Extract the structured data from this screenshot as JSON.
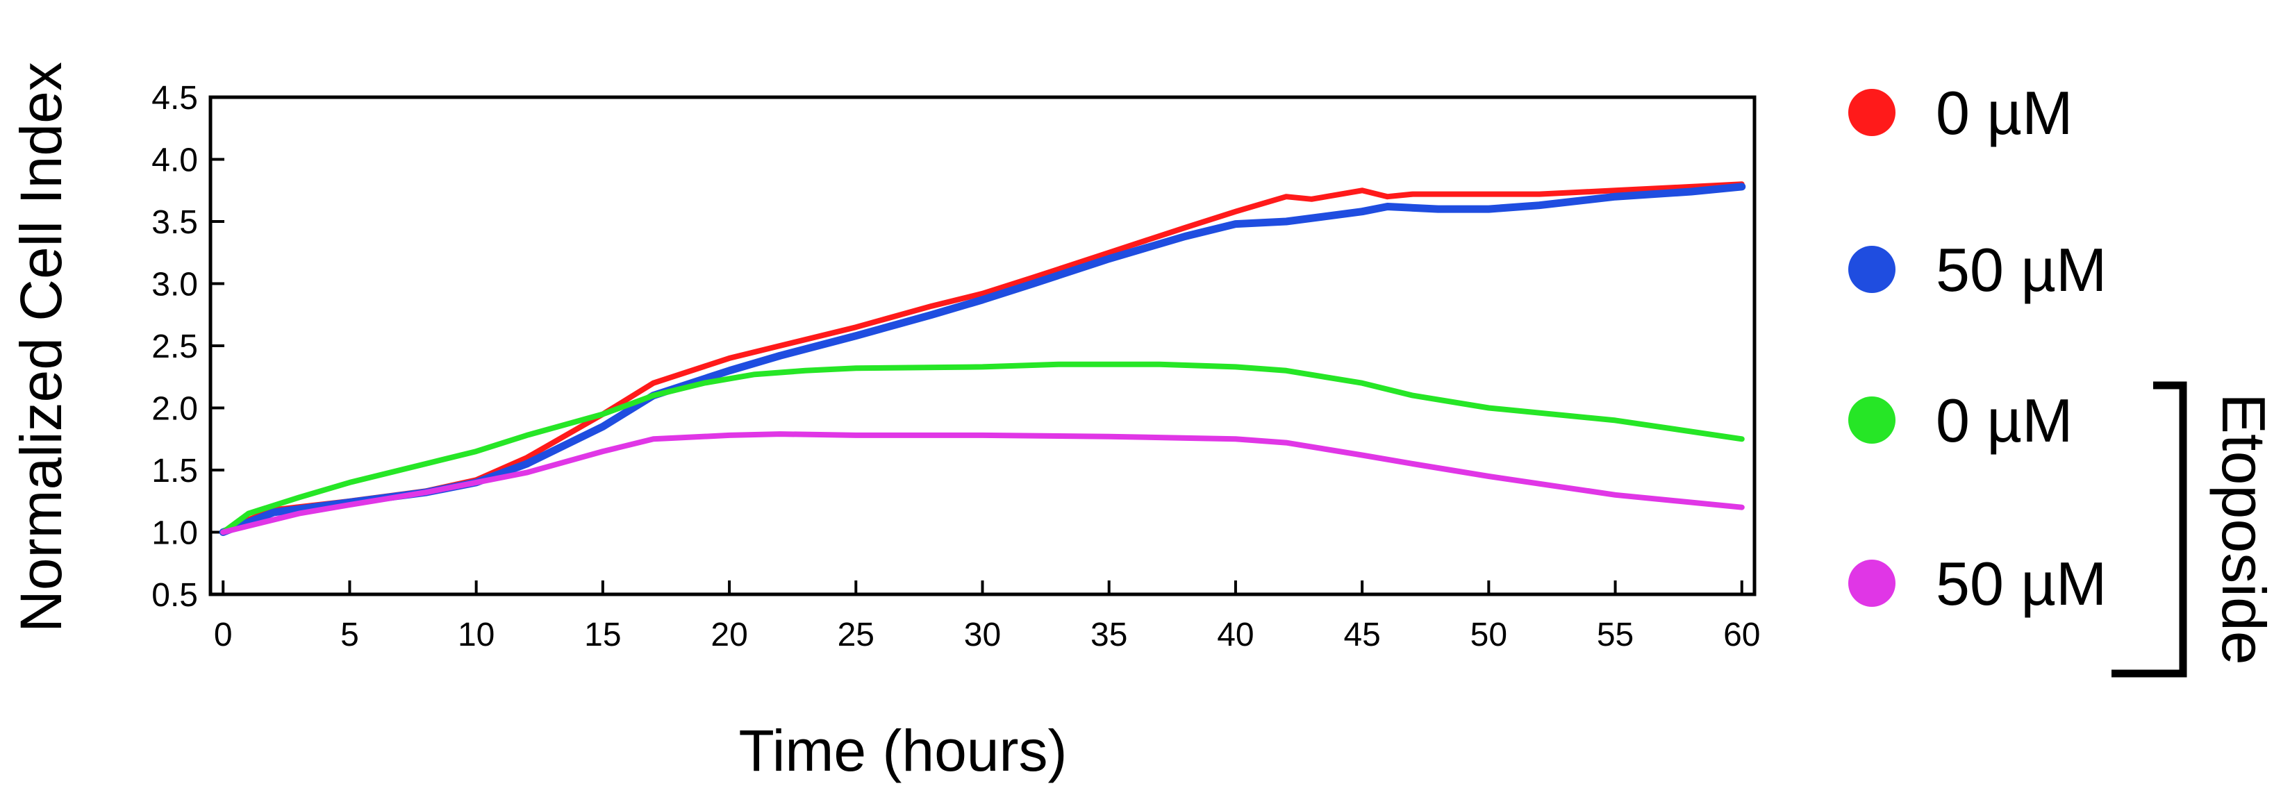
{
  "chart_data": {
    "type": "line",
    "xlabel": "Time (hours)",
    "ylabel": "Normalized Cell Index",
    "xlim": [
      -0.5,
      60.5
    ],
    "ylim": [
      0.5,
      4.5
    ],
    "xticks": [
      0,
      5,
      10,
      15,
      20,
      25,
      30,
      35,
      40,
      45,
      50,
      55,
      60
    ],
    "yticks": [
      0.5,
      1.0,
      1.5,
      2.0,
      2.5,
      3.0,
      3.5,
      4.0,
      4.5
    ],
    "xtick_labels": [
      "0",
      "5",
      "10",
      "15",
      "20",
      "25",
      "30",
      "35",
      "40",
      "45",
      "50",
      "55",
      "60"
    ],
    "ytick_labels": [
      "0.5",
      "1.0",
      "1.5",
      "2.0",
      "2.5",
      "3.0",
      "3.5",
      "4.0",
      "4.5"
    ],
    "grid": false,
    "legend_placement": "right",
    "bracket_label": "Etoposide",
    "series": [
      {
        "name": "0 µM",
        "color": "#ff1a1a",
        "x": [
          0,
          1,
          2,
          5,
          8,
          10,
          12,
          15,
          17,
          20,
          22,
          25,
          28,
          30,
          32,
          35,
          38,
          40,
          42,
          43,
          45,
          46,
          47,
          50,
          52,
          55,
          58,
          60
        ],
        "y": [
          1.0,
          1.1,
          1.18,
          1.25,
          1.33,
          1.42,
          1.6,
          1.95,
          2.2,
          2.4,
          2.5,
          2.65,
          2.82,
          2.92,
          3.05,
          3.25,
          3.45,
          3.58,
          3.7,
          3.68,
          3.75,
          3.7,
          3.72,
          3.72,
          3.72,
          3.75,
          3.78,
          3.8
        ]
      },
      {
        "name": "50 µM",
        "color": "#1f4de0",
        "x": [
          0,
          1,
          2,
          5,
          8,
          10,
          12,
          15,
          17,
          20,
          22,
          25,
          28,
          30,
          32,
          35,
          38,
          40,
          42,
          45,
          46,
          48,
          50,
          52,
          55,
          58,
          60
        ],
        "y": [
          1.0,
          1.08,
          1.16,
          1.24,
          1.32,
          1.4,
          1.55,
          1.85,
          2.1,
          2.3,
          2.42,
          2.58,
          2.75,
          2.87,
          3.0,
          3.2,
          3.38,
          3.48,
          3.5,
          3.58,
          3.62,
          3.6,
          3.6,
          3.63,
          3.7,
          3.74,
          3.78
        ]
      },
      {
        "name": "0 µM",
        "color": "#26e626",
        "x": [
          0,
          1,
          3,
          5,
          8,
          10,
          12,
          15,
          17,
          19,
          21,
          23,
          25,
          30,
          33,
          35,
          37,
          40,
          42,
          45,
          47,
          50,
          55,
          60
        ],
        "y": [
          1.0,
          1.15,
          1.28,
          1.4,
          1.55,
          1.65,
          1.78,
          1.95,
          2.1,
          2.2,
          2.27,
          2.3,
          2.32,
          2.33,
          2.35,
          2.35,
          2.35,
          2.33,
          2.3,
          2.2,
          2.1,
          2.0,
          1.9,
          1.75
        ]
      },
      {
        "name": "50 µM",
        "color": "#e036e6",
        "x": [
          0,
          1,
          3,
          5,
          8,
          10,
          12,
          15,
          17,
          20,
          22,
          25,
          30,
          35,
          40,
          42,
          45,
          47,
          50,
          55,
          60
        ],
        "y": [
          1.0,
          1.05,
          1.15,
          1.22,
          1.32,
          1.4,
          1.48,
          1.65,
          1.75,
          1.78,
          1.79,
          1.78,
          1.78,
          1.77,
          1.75,
          1.72,
          1.62,
          1.55,
          1.45,
          1.3,
          1.2
        ]
      }
    ]
  }
}
